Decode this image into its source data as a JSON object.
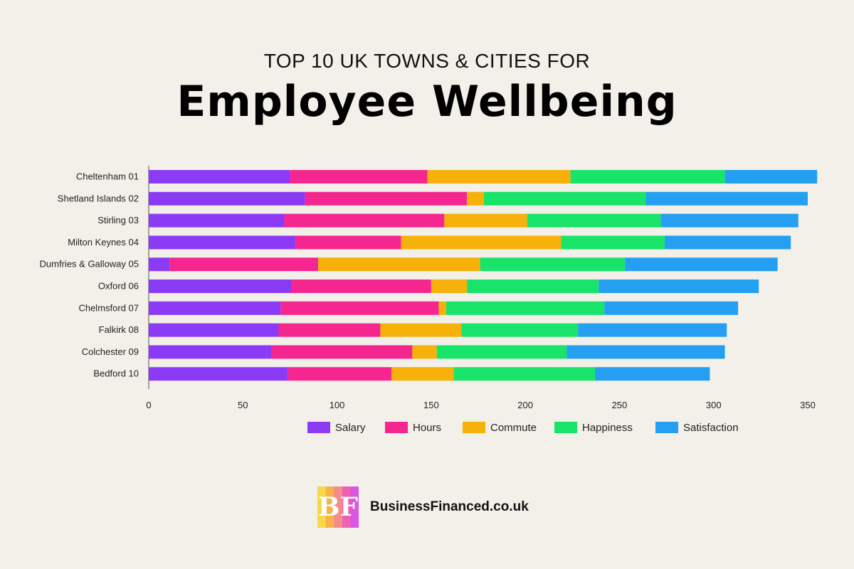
{
  "header": {
    "title_top": "TOP 10 UK TOWNS & CITIES FOR",
    "title_main": "Employee Wellbeing"
  },
  "brand": {
    "logo_text": "BF",
    "name": "BusinessFinanced.co.uk"
  },
  "chart_data": {
    "type": "bar",
    "orientation": "horizontal",
    "stacked": true,
    "categories": [
      "Cheltenham 01",
      "Shetland Islands 02",
      "Stirling 03",
      "Milton Keynes 04",
      "Dumfries & Galloway 05",
      "Oxford 06",
      "Chelmsford 07",
      "Falkirk 08",
      "Colchester 09",
      "Bedford 10"
    ],
    "series": [
      {
        "name": "Salary",
        "color": "#8b3bf6",
        "values": [
          75,
          83,
          72,
          78,
          11,
          76,
          70,
          69,
          65,
          74
        ]
      },
      {
        "name": "Hours",
        "color": "#f5268f",
        "values": [
          73,
          86,
          85,
          56,
          79,
          74,
          84,
          54,
          75,
          55
        ]
      },
      {
        "name": "Commute",
        "color": "#f6b10a",
        "values": [
          76,
          9,
          44,
          85,
          86,
          19,
          4,
          43,
          13,
          33
        ]
      },
      {
        "name": "Happiness",
        "color": "#19e46a",
        "values": [
          82,
          86,
          71,
          55,
          77,
          70,
          84,
          62,
          69,
          75
        ]
      },
      {
        "name": "Satisfaction",
        "color": "#249ff2",
        "values": [
          49,
          86,
          73,
          67,
          81,
          85,
          71,
          79,
          84,
          61
        ]
      }
    ],
    "xlim": [
      0,
      350
    ],
    "xticks": [
      0,
      50,
      100,
      150,
      200,
      250,
      300,
      350
    ],
    "xlabel": "",
    "ylabel": "",
    "grid": false,
    "legend_position": "bottom"
  }
}
